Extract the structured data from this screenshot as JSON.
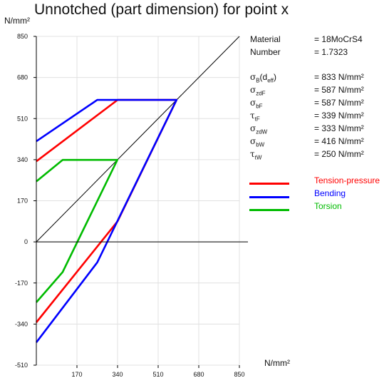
{
  "header": {
    "title": "Unnotched (part dimension) for point x"
  },
  "axes": {
    "y_unit": "N/mm²",
    "x_unit": "N/mm²"
  },
  "info": {
    "material_label": "Material",
    "material_value": "= 18MoCrS4",
    "number_label": "Number",
    "number_value": "= 1.7323",
    "rows": [
      {
        "sym": "σ",
        "sub": "B",
        "extra": "(d",
        "extra_sub": "eff",
        "extra_end": ")",
        "value": "= 833  N/mm²"
      },
      {
        "sym": "σ",
        "sub": "zdF",
        "value": "= 587  N/mm²"
      },
      {
        "sym": "σ",
        "sub": "bF",
        "value": "= 587  N/mm²"
      },
      {
        "sym": "τ",
        "sub": "tF",
        "value": "= 339  N/mm²"
      },
      {
        "sym": "σ",
        "sub": "zdW",
        "value": "= 333  N/mm²"
      },
      {
        "sym": "σ",
        "sub": "bW",
        "value": "= 416  N/mm²"
      },
      {
        "sym": "τ",
        "sub": "tW",
        "value": "= 250  N/mm²"
      }
    ]
  },
  "legend": [
    {
      "label": "Tension-pressure",
      "color": "#ff0000"
    },
    {
      "label": "Bending",
      "color": "#0000ff"
    },
    {
      "label": "Torsion",
      "color": "#00bb00"
    }
  ],
  "chart_data": {
    "type": "line",
    "title": "Unnotched (part dimension) for point x",
    "xlim": [
      0,
      850
    ],
    "ylim": [
      -510,
      850
    ],
    "x_ticks": [
      170,
      340,
      510,
      680,
      850
    ],
    "y_ticks": [
      850,
      680,
      510,
      340,
      170,
      0,
      -170,
      -340,
      -510
    ],
    "series": [
      {
        "name": "Tension-pressure",
        "color": "#ff0000",
        "points": [
          [
            0,
            333
          ],
          [
            340,
            587
          ],
          [
            587,
            587
          ],
          [
            340,
            85
          ],
          [
            0,
            -333
          ]
        ]
      },
      {
        "name": "Bending",
        "color": "#0000ff",
        "points": [
          [
            0,
            416
          ],
          [
            255,
            587
          ],
          [
            587,
            587
          ],
          [
            255,
            -85
          ],
          [
            0,
            -416
          ]
        ]
      },
      {
        "name": "Torsion",
        "color": "#00bb00",
        "points": [
          [
            0,
            250
          ],
          [
            110,
            339
          ],
          [
            339,
            339
          ],
          [
            110,
            -125
          ],
          [
            0,
            -250
          ]
        ]
      }
    ],
    "reference_line": {
      "color": "#000000",
      "points": [
        [
          0,
          0
        ],
        [
          850,
          850
        ]
      ]
    }
  }
}
